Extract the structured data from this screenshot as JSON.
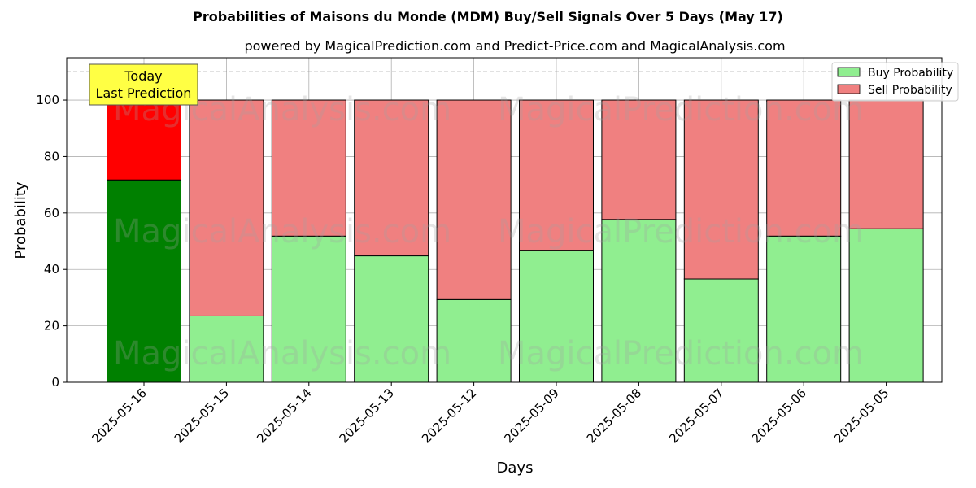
{
  "chart_data": {
    "type": "bar",
    "stacked": true,
    "title": "Probabilities of Maisons du Monde (MDM) Buy/Sell Signals Over 5 Days (May 17)",
    "subtitle": "powered by MagicalPrediction.com and Predict-Price.com and MagicalAnalysis.com",
    "xlabel": "Days",
    "ylabel": "Probability",
    "ylim": [
      0,
      115
    ],
    "yticks": [
      0,
      20,
      40,
      60,
      80,
      100
    ],
    "reference_line": 110,
    "grid": true,
    "legend_position": "top-right",
    "categories": [
      "2025-05-16",
      "2025-05-15",
      "2025-05-14",
      "2025-05-13",
      "2025-05-12",
      "2025-05-09",
      "2025-05-08",
      "2025-05-07",
      "2025-05-06",
      "2025-05-05"
    ],
    "series": [
      {
        "name": "Buy Probability",
        "color": "#90ee90",
        "highlight_color": "#008000",
        "values": [
          71.7,
          23.5,
          51.8,
          44.8,
          29.3,
          46.8,
          57.7,
          36.6,
          51.8,
          54.4
        ]
      },
      {
        "name": "Sell Probability",
        "color": "#f08080",
        "highlight_color": "#ff0000",
        "values": [
          28.3,
          76.5,
          48.2,
          55.2,
          70.7,
          53.2,
          42.3,
          63.4,
          48.2,
          45.6
        ]
      }
    ],
    "annotation": {
      "lines": [
        "Today",
        "Last Prediction"
      ],
      "bg_color": "#ffff44"
    },
    "watermarks": [
      "MagicalAnalysis.com",
      "MagicalPrediction.com"
    ]
  }
}
